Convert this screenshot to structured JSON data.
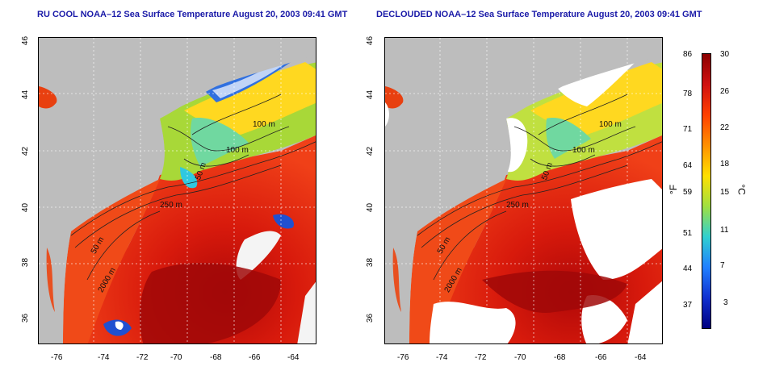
{
  "titles": {
    "left": "RU COOL NOAA–12 Sea Surface Temperature August 20, 2003 09:41 GMT",
    "right": "DECLOUDED NOAA–12 Sea Surface Temperature August 20, 2003 09:41 GMT"
  },
  "axes": {
    "x_ticks": [
      "-76",
      "-74",
      "-72",
      "-70",
      "-68",
      "-66",
      "-64"
    ],
    "y_ticks": [
      "46",
      "44",
      "42",
      "40",
      "38",
      "36"
    ]
  },
  "contour_labels": {
    "left": [
      "100 m",
      "100 m",
      "50 m",
      "250 m",
      "50 m",
      "2000 m"
    ],
    "right": [
      "100 m",
      "100 m",
      "50 m",
      "250 m",
      "50 m",
      "2000 m"
    ]
  },
  "colorbar": {
    "fahrenheit_ticks": [
      "86",
      "78",
      "71",
      "64",
      "59",
      "51",
      "44",
      "37"
    ],
    "celsius_ticks": [
      "30",
      "26",
      "22",
      "18",
      "15",
      "11",
      "7",
      "3"
    ],
    "fahrenheit_unit": "°F",
    "celsius_unit": "°C",
    "colors": [
      "#8b0000",
      "#d01010",
      "#ff4000",
      "#ff9000",
      "#ffe000",
      "#a0e040",
      "#30d0d0",
      "#2080ff",
      "#1030d0",
      "#000080"
    ]
  },
  "map_colors": {
    "land": "#bdbdbd",
    "cloud": "#ffffff",
    "warm_sea": "#e83010",
    "hot_sea": "#b80808",
    "shelf": "#ff7020",
    "cool": "#c8e040",
    "cold": "#30c0e0"
  }
}
